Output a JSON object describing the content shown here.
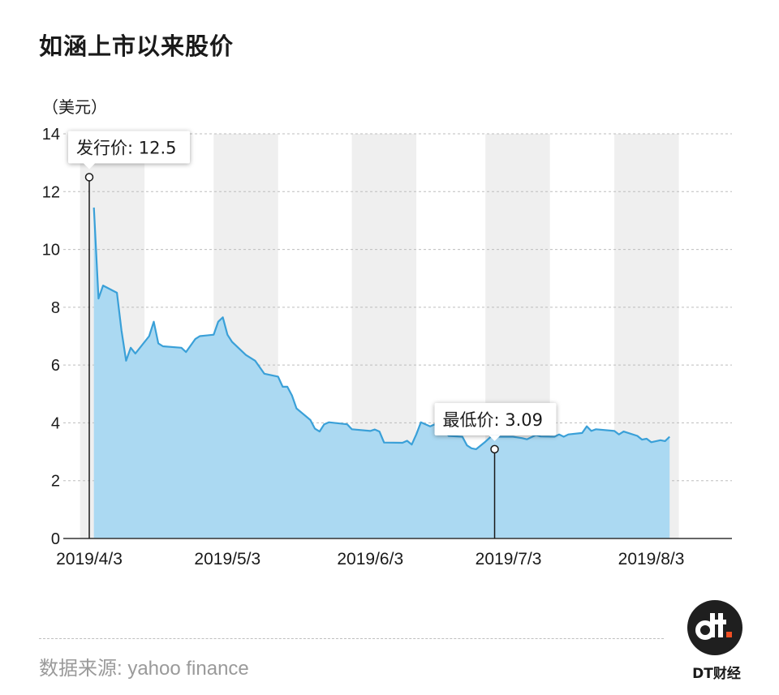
{
  "title": "如涵上市以来股价",
  "source": "数据来源: yahoo finance",
  "brand": "DT财经",
  "colors": {
    "line": "#3aa0d8",
    "area": "#abd9f2",
    "band": "#efefef",
    "grid": "#bdbdbd",
    "logo_bg": "#1f1f1f",
    "logo_dot": "#f04e23"
  },
  "chart_data": {
    "type": "area",
    "title": "如涵上市以来股价",
    "ylabel": "（美元）",
    "xlabel": "",
    "ylim": [
      0,
      14
    ],
    "yticks": [
      0,
      2,
      4,
      6,
      8,
      10,
      12,
      14
    ],
    "x_ticks": [
      {
        "day": 0,
        "label": "2019/4/3"
      },
      {
        "day": 30,
        "label": "2019/5/3"
      },
      {
        "day": 61,
        "label": "2019/6/3"
      },
      {
        "day": 91,
        "label": "2019/7/3"
      },
      {
        "day": 122,
        "label": "2019/8/3"
      }
    ],
    "x_range_days": [
      0,
      136
    ],
    "grid": "horizontal dashed",
    "annotations": [
      {
        "label": "发行价: 12.5",
        "day": 0,
        "value": 12.5
      },
      {
        "label": "最低价: 3.09",
        "day": 88,
        "value": 3.09
      }
    ],
    "series": [
      {
        "points": [
          [
            1,
            11.45
          ],
          [
            2,
            8.3
          ],
          [
            3,
            8.75
          ],
          [
            6,
            8.5
          ],
          [
            7,
            7.2
          ],
          [
            8,
            6.15
          ],
          [
            9,
            6.6
          ],
          [
            10,
            6.4
          ],
          [
            13,
            7.0
          ],
          [
            14,
            7.5
          ],
          [
            15,
            6.75
          ],
          [
            16,
            6.65
          ],
          [
            20,
            6.6
          ],
          [
            21,
            6.45
          ],
          [
            23,
            6.9
          ],
          [
            24,
            7.0
          ],
          [
            27,
            7.05
          ],
          [
            28,
            7.5
          ],
          [
            29,
            7.65
          ],
          [
            30,
            7.05
          ],
          [
            31,
            6.8
          ],
          [
            34,
            6.35
          ],
          [
            36,
            6.15
          ],
          [
            38,
            5.7
          ],
          [
            41,
            5.6
          ],
          [
            42,
            5.25
          ],
          [
            43,
            5.25
          ],
          [
            44,
            4.95
          ],
          [
            45,
            4.5
          ],
          [
            48,
            4.1
          ],
          [
            49,
            3.8
          ],
          [
            50,
            3.7
          ],
          [
            51,
            3.95
          ],
          [
            52,
            4.02
          ],
          [
            56,
            3.95
          ],
          [
            57,
            3.78
          ],
          [
            61,
            3.72
          ],
          [
            62,
            3.77
          ],
          [
            63,
            3.7
          ],
          [
            64,
            3.32
          ],
          [
            68,
            3.31
          ],
          [
            69,
            3.38
          ],
          [
            70,
            3.25
          ],
          [
            71,
            3.6
          ],
          [
            72,
            4.02
          ],
          [
            74,
            3.88
          ],
          [
            75,
            3.95
          ],
          [
            76,
            3.65
          ],
          [
            77,
            3.82
          ],
          [
            78,
            3.55
          ],
          [
            81,
            3.52
          ],
          [
            82,
            3.22
          ],
          [
            83,
            3.12
          ],
          [
            84,
            3.09
          ],
          [
            86,
            3.35
          ],
          [
            88,
            3.64
          ],
          [
            89,
            3.52
          ],
          [
            92,
            3.52
          ],
          [
            94,
            3.47
          ],
          [
            95,
            3.43
          ],
          [
            97,
            3.58
          ],
          [
            98,
            3.53
          ],
          [
            101,
            3.52
          ],
          [
            102,
            3.6
          ],
          [
            103,
            3.52
          ],
          [
            104,
            3.6
          ],
          [
            107,
            3.65
          ],
          [
            108,
            3.88
          ],
          [
            109,
            3.72
          ],
          [
            110,
            3.78
          ],
          [
            114,
            3.72
          ],
          [
            115,
            3.6
          ],
          [
            116,
            3.7
          ],
          [
            119,
            3.55
          ],
          [
            120,
            3.42
          ],
          [
            121,
            3.45
          ],
          [
            122,
            3.33
          ],
          [
            124,
            3.4
          ],
          [
            125,
            3.37
          ],
          [
            126,
            3.52
          ]
        ]
      }
    ]
  }
}
